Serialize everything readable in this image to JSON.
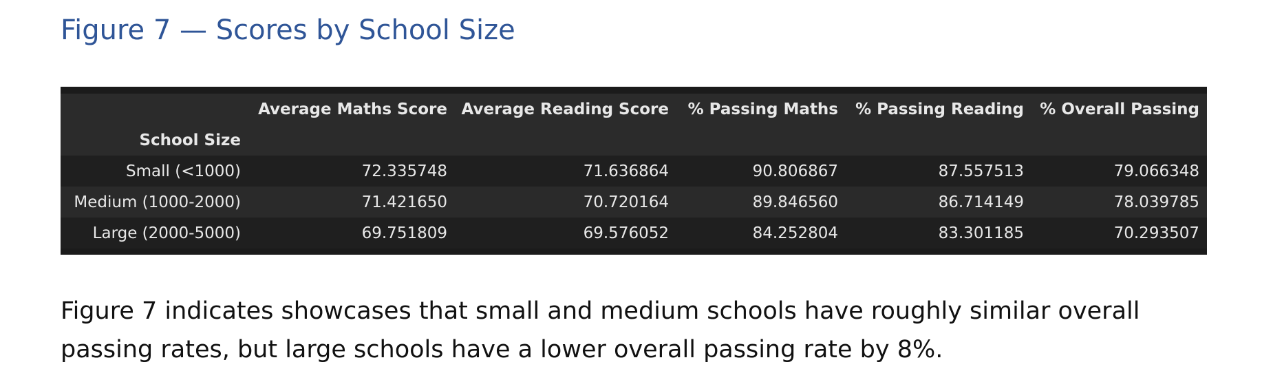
{
  "figure": {
    "title": "Figure 7 — Scores by School Size"
  },
  "table": {
    "index_name": "School Size",
    "columns": [
      "Average Maths Score",
      "Average Reading Score",
      "% Passing Maths",
      "% Passing Reading",
      "% Overall Passing"
    ],
    "rows": [
      {
        "label": "Small (<1000)",
        "values": [
          "72.335748",
          "71.636864",
          "90.806867",
          "87.557513",
          "79.066348"
        ]
      },
      {
        "label": "Medium (1000-2000)",
        "values": [
          "71.421650",
          "70.720164",
          "89.846560",
          "86.714149",
          "78.039785"
        ]
      },
      {
        "label": "Large (2000-5000)",
        "values": [
          "69.751809",
          "69.576052",
          "84.252804",
          "83.301185",
          "70.293507"
        ]
      }
    ],
    "colors": {
      "background": "#1b1b1b",
      "text": "#e8e8e8"
    }
  },
  "paragraph": {
    "text": "Figure 7 indicates showcases that small and medium schools have roughly similar overall passing rates, but large schools have a lower overall passing rate by 8%."
  },
  "colors": {
    "title": "#2f5597",
    "body_text": "#111111"
  }
}
